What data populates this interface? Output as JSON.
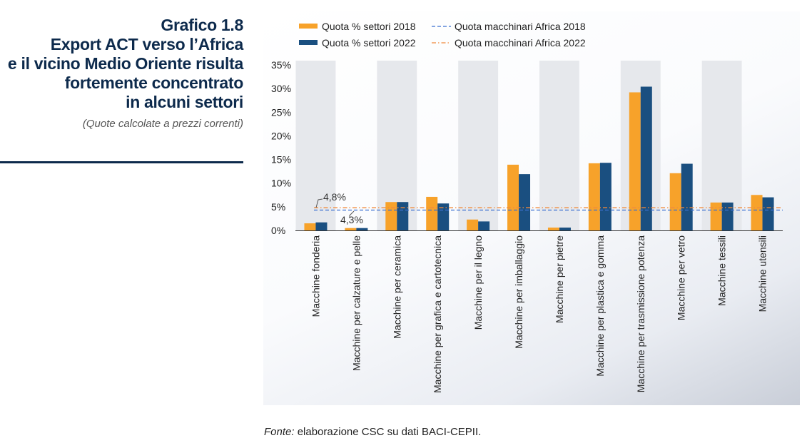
{
  "header": {
    "title_lines": [
      "Grafico 1.8",
      "Export ACT verso l’Africa",
      "e il vicino Medio Oriente risulta",
      "fortemente concentrato",
      "in alcuni settori"
    ],
    "subtitle": "(Quote calcolate a prezzi correnti)"
  },
  "source": {
    "label": "Fonte:",
    "text": " elaborazione CSC su dati BACI-CEPII."
  },
  "colors": {
    "s2018": "#f7a22a",
    "s2022": "#1a4f80",
    "ref2018": "#3a6fd0",
    "ref2022": "#f08a3c",
    "band": "#e6e8ec",
    "title": "#0d2a4c"
  },
  "chart_data": {
    "type": "bar",
    "categories": [
      "Macchine fonderia",
      "Macchine per calzature e pelle",
      "Macchine per ceramica",
      "Macchine per grafica e cartotecnica",
      "Macchine per il legno",
      "Macchine per imballaggio",
      "Macchine per pietre",
      "Macchine per plastica e gomma",
      "Macchine per trasmissione potenza",
      "Macchine per vetro",
      "Macchine tessili",
      "Macchine utensili"
    ],
    "series": [
      {
        "name": "Quota % settori 2018",
        "values": [
          1.5,
          0.5,
          6.0,
          7.1,
          2.3,
          13.9,
          0.6,
          14.2,
          29.2,
          12.1,
          5.9,
          7.5
        ]
      },
      {
        "name": "Quota % settori 2022",
        "values": [
          1.7,
          0.5,
          6.0,
          5.7,
          1.9,
          11.9,
          0.6,
          14.3,
          30.4,
          14.1,
          5.9,
          7.0
        ]
      }
    ],
    "reference_lines": [
      {
        "name": "Quota macchinari Africa 2018",
        "value": 4.3,
        "label": "4,3%",
        "style": "dashed"
      },
      {
        "name": "Quota macchinari Africa 2022",
        "value": 4.8,
        "label": "4,8%",
        "style": "dashdot"
      }
    ],
    "ylim": [
      0,
      35
    ],
    "yticks": [
      "0%",
      "5%",
      "10%",
      "15%",
      "20%",
      "25%",
      "30%",
      "35%"
    ],
    "legend_position": "top",
    "alternating_bands": true
  }
}
